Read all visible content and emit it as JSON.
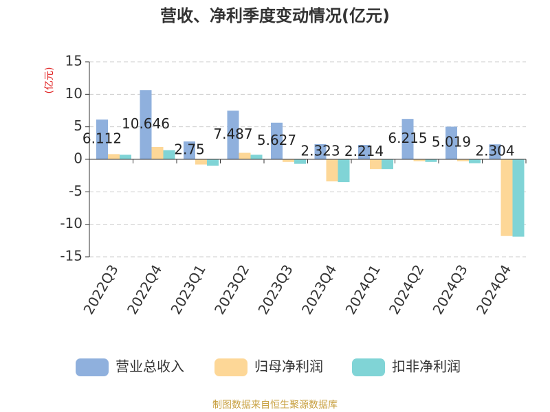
{
  "chart_data": {
    "type": "bar",
    "title": "营收、净利季度变动情况(亿元)",
    "y_label": "(亿元)",
    "categories": [
      "2022Q3",
      "2022Q4",
      "2023Q1",
      "2023Q2",
      "2023Q3",
      "2023Q4",
      "2024Q1",
      "2024Q2",
      "2024Q3",
      "2024Q4"
    ],
    "series": [
      {
        "name": "营业总收入",
        "color": "#8fb0dd",
        "values": [
          6.112,
          10.646,
          2.75,
          7.487,
          5.627,
          2.323,
          2.214,
          6.215,
          5.019,
          2.304
        ],
        "show_labels": true
      },
      {
        "name": "归母净利润",
        "color": "#fdd797",
        "values": [
          0.8,
          1.9,
          -0.8,
          1.0,
          -0.4,
          -3.4,
          -1.5,
          -0.3,
          -0.3,
          -11.8
        ]
      },
      {
        "name": "扣非净利润",
        "color": "#80d4d6",
        "values": [
          0.7,
          1.4,
          -1.0,
          0.7,
          -0.7,
          -3.5,
          -1.5,
          -0.4,
          -0.6,
          -11.9
        ]
      }
    ],
    "ylim": [
      -15,
      15
    ],
    "yticks": [
      -15,
      -10,
      -5,
      0,
      5,
      10,
      15
    ],
    "grid": true,
    "legend": "bottom",
    "source": "制图数据来自恒生聚源数据库"
  }
}
